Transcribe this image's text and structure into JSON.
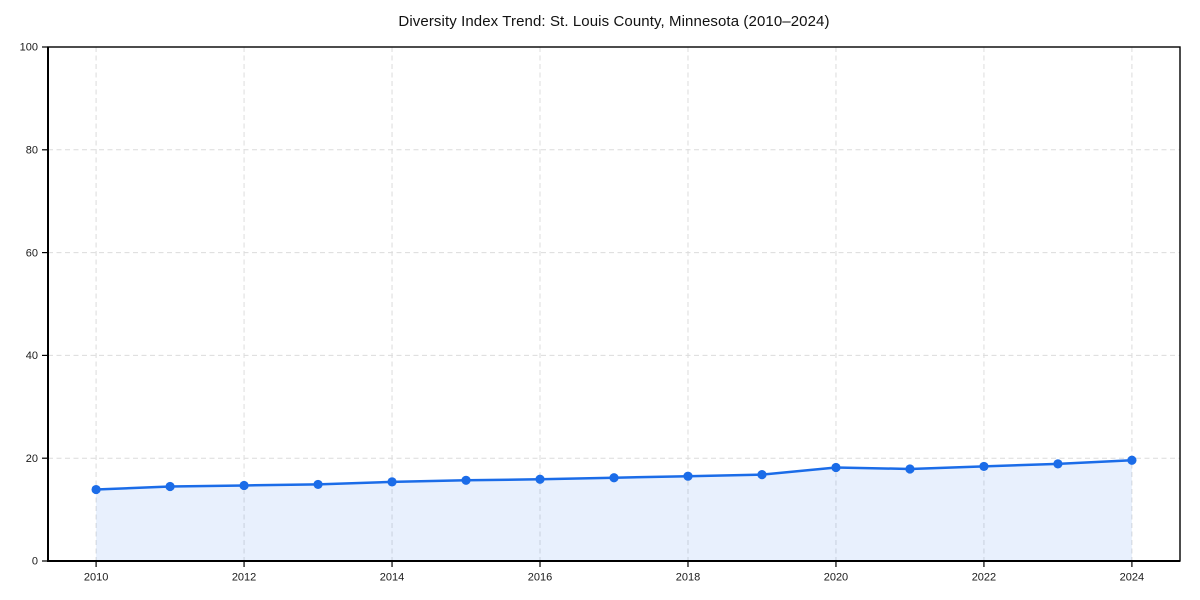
{
  "figure": {
    "background": "#ffffff"
  },
  "chart_data": {
    "type": "area",
    "title": "Diversity Index Trend: St. Louis County, Minnesota (2010–2024)",
    "x": [
      2010,
      2011,
      2012,
      2013,
      2014,
      2015,
      2016,
      2017,
      2018,
      2019,
      2020,
      2021,
      2022,
      2023,
      2024
    ],
    "series": [
      {
        "name": "Diversity Index",
        "values": [
          13.9,
          14.5,
          14.7,
          14.9,
          15.4,
          15.7,
          15.9,
          16.2,
          16.5,
          16.8,
          18.2,
          17.9,
          18.4,
          18.9,
          19.6
        ]
      }
    ],
    "xlabel": "",
    "ylabel": "",
    "xlim": [
      2009.35,
      2024.65
    ],
    "ylim": [
      0,
      100
    ],
    "x_ticks": [
      2010,
      2012,
      2014,
      2016,
      2018,
      2020,
      2022,
      2024
    ],
    "y_ticks": [
      0,
      20,
      40,
      60,
      80,
      100
    ],
    "grid": true,
    "grid_style": "dashed",
    "legend": "none",
    "marker": "circle",
    "colors": {
      "line": "#1b6ce8",
      "marker": "#1b6ce8",
      "fill": "rgba(27,108,232,0.10)",
      "grid": "#dcdcdc",
      "axis": "#000000",
      "tick_label": "#1a1a1a",
      "title": "#111111",
      "background": "#ffffff"
    }
  }
}
